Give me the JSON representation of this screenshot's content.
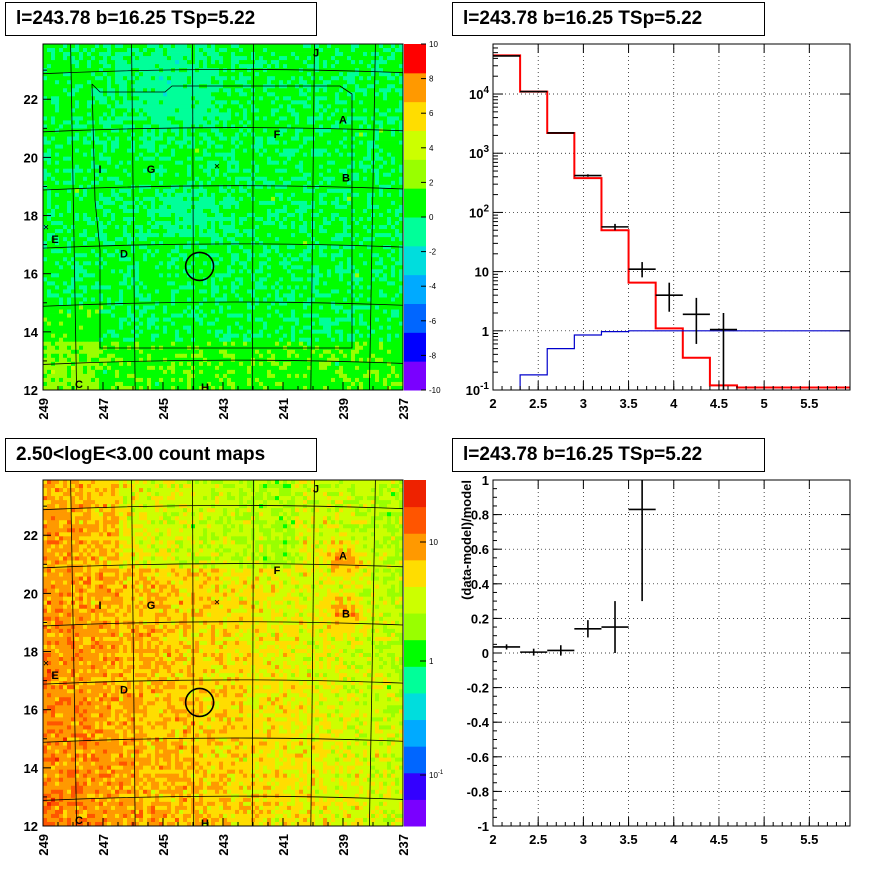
{
  "panels": {
    "tl_title": "l=243.78 b=16.25 TSp=5.22",
    "tr_title": "l=243.78 b=16.25 TSp=5.22",
    "bl_title": "2.50<logE<3.00 count maps",
    "br_title": "l=243.78 b=16.25 TSp=5.22"
  },
  "source_labels": [
    "J",
    "A",
    "F",
    "I",
    "G",
    "B",
    "E",
    "D",
    "C",
    "H"
  ],
  "chart_data": [
    {
      "type": "heatmap",
      "name": "residual significance map",
      "title": "l=243.78 b=16.25 TSp=5.22",
      "x_ticks": [
        "249",
        "247",
        "245",
        "243",
        "241",
        "239",
        "237"
      ],
      "y_ticks": [
        "12",
        "14",
        "16",
        "18",
        "20",
        "22"
      ],
      "colorbar_ticks": [
        "10",
        "8",
        "6",
        "4",
        "2",
        "0",
        "-2",
        "-4",
        "-6",
        "-8",
        "-10"
      ],
      "colorbar_range": [
        -10,
        10
      ],
      "colors": [
        "#7a00ff",
        "#0000ff",
        "#0066ff",
        "#00aaff",
        "#00dddd",
        "#00ff99",
        "#00ff00",
        "#99ff00",
        "#ccff00",
        "#ffdd00",
        "#ff9900",
        "#ff0000"
      ]
    },
    {
      "type": "step",
      "name": "count spectrum",
      "title": "l=243.78 b=16.25 TSp=5.22",
      "x_ticks": [
        "2",
        "2.5",
        "3",
        "3.5",
        "4",
        "4.5",
        "5",
        "5.5"
      ],
      "y_ticks": [
        "10^-1",
        "1",
        "10",
        "10^2",
        "10^3",
        "10^4"
      ],
      "xlim": [
        2,
        5.95
      ],
      "ylim": [
        0.1,
        70000
      ],
      "log_y": true,
      "grid": true,
      "series": [
        {
          "color": "#ff0000",
          "edges": [
            2,
            2.3,
            2.6,
            2.9,
            3.2,
            3.5,
            3.8,
            4.1,
            4.4,
            4.7,
            5.0,
            5.3,
            5.6,
            5.95
          ],
          "values": [
            45000,
            11000,
            2200,
            380,
            50,
            6.5,
            1.1,
            0.35,
            0.12,
            0.11,
            0.11,
            0.11,
            0.11
          ]
        },
        {
          "color": "#0000cc",
          "edges": [
            2,
            2.3,
            2.6,
            2.9,
            3.2,
            3.5,
            3.8,
            4.1,
            4.4,
            4.7,
            5.0,
            5.3,
            5.6,
            5.95
          ],
          "values": [
            0.01,
            0.18,
            0.5,
            0.85,
            0.97,
            1.0,
            1.0,
            1.0,
            1.0,
            1.0,
            1.0,
            1.0,
            1.0
          ]
        }
      ],
      "points": [
        {
          "x": 2.15,
          "y": 44000,
          "xerr": 0.15,
          "ylo": 43600,
          "yhi": 44400
        },
        {
          "x": 2.45,
          "y": 11000,
          "xerr": 0.15,
          "ylo": 10900,
          "yhi": 11100
        },
        {
          "x": 2.75,
          "y": 2200,
          "xerr": 0.15,
          "ylo": 2150,
          "yhi": 2250
        },
        {
          "x": 3.05,
          "y": 420,
          "xerr": 0.15,
          "ylo": 400,
          "yhi": 440
        },
        {
          "x": 3.35,
          "y": 57,
          "xerr": 0.15,
          "ylo": 50,
          "yhi": 64
        },
        {
          "x": 3.65,
          "y": 11,
          "xerr": 0.15,
          "ylo": 8,
          "yhi": 14.5
        },
        {
          "x": 3.95,
          "y": 4,
          "xerr": 0.15,
          "ylo": 2.1,
          "yhi": 6.5
        },
        {
          "x": 4.25,
          "y": 1.9,
          "xerr": 0.15,
          "ylo": 0.6,
          "yhi": 3.6
        },
        {
          "x": 4.55,
          "y": 1.05,
          "xerr": 0.15,
          "ylo": 0.1,
          "yhi": 2.0
        }
      ]
    },
    {
      "type": "heatmap",
      "name": "count map",
      "title": "2.50<logE<3.00 count maps",
      "x_ticks": [
        "249",
        "247",
        "245",
        "243",
        "241",
        "239",
        "237"
      ],
      "y_ticks": [
        "12",
        "14",
        "16",
        "18",
        "20",
        "22"
      ],
      "colorbar_ticks": [
        "10",
        "1",
        "10^-1"
      ],
      "log_scale": true,
      "colors": [
        "#7a00ff",
        "#3300ff",
        "#0066ff",
        "#00aaff",
        "#00dddd",
        "#00ff99",
        "#00ff00",
        "#99ff00",
        "#ccff00",
        "#ffdd00",
        "#ff9900",
        "#ff5500",
        "#ee2200"
      ]
    },
    {
      "type": "scatter",
      "name": "fractional residuals",
      "title": "l=243.78 b=16.25 TSp=5.22",
      "ylabel": "(data-model)/model",
      "x_ticks": [
        "2",
        "2.5",
        "3",
        "3.5",
        "4",
        "4.5",
        "5",
        "5.5"
      ],
      "y_ticks": [
        "-1",
        "-0.8",
        "-0.6",
        "-0.4",
        "-0.2",
        "0",
        "0.2",
        "0.4",
        "0.6",
        "0.8",
        "1"
      ],
      "xlim": [
        2,
        5.95
      ],
      "ylim": [
        -1,
        1
      ],
      "grid": true,
      "points": [
        {
          "x": 2.15,
          "y": 0.035,
          "xerr": 0.15,
          "ylo": 0.02,
          "yhi": 0.05
        },
        {
          "x": 2.45,
          "y": 0.005,
          "xerr": 0.15,
          "ylo": -0.015,
          "yhi": 0.025
        },
        {
          "x": 2.75,
          "y": 0.015,
          "xerr": 0.15,
          "ylo": -0.015,
          "yhi": 0.045
        },
        {
          "x": 3.05,
          "y": 0.14,
          "xerr": 0.15,
          "ylo": 0.09,
          "yhi": 0.19
        },
        {
          "x": 3.35,
          "y": 0.15,
          "xerr": 0.15,
          "ylo": 0.0,
          "yhi": 0.3
        },
        {
          "x": 3.65,
          "y": 0.83,
          "xerr": 0.15,
          "ylo": 0.3,
          "yhi": 1.0
        }
      ]
    }
  ]
}
